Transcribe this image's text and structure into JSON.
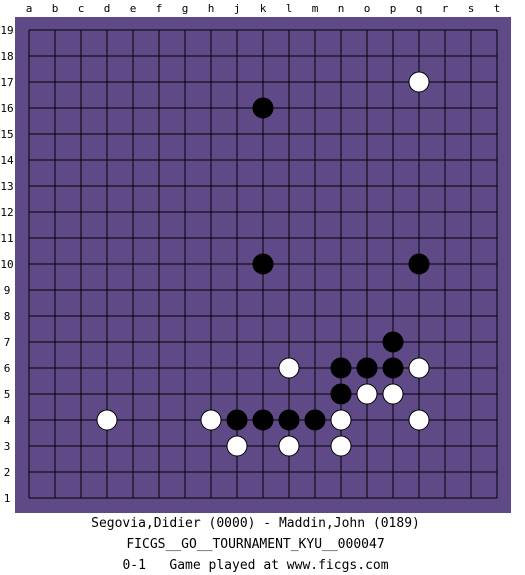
{
  "board": {
    "size": 19,
    "columns": [
      "a",
      "b",
      "c",
      "d",
      "e",
      "f",
      "g",
      "h",
      "j",
      "k",
      "l",
      "m",
      "n",
      "o",
      "p",
      "q",
      "r",
      "s",
      "t"
    ],
    "rows": [
      "19",
      "18",
      "17",
      "16",
      "15",
      "14",
      "13",
      "12",
      "11",
      "10",
      "9",
      "8",
      "7",
      "6",
      "5",
      "4",
      "3",
      "2",
      "1"
    ],
    "colors": {
      "board": "#5f4a87",
      "margin": "#5f4a87",
      "grid": "#000000",
      "black_stone": "#000000",
      "white_stone": "#ffffff"
    },
    "stones": [
      {
        "coord": "q17",
        "color": "white"
      },
      {
        "coord": "k16",
        "color": "black"
      },
      {
        "coord": "k10",
        "color": "black"
      },
      {
        "coord": "q10",
        "color": "black"
      },
      {
        "coord": "p7",
        "color": "black"
      },
      {
        "coord": "l6",
        "color": "white"
      },
      {
        "coord": "n6",
        "color": "black"
      },
      {
        "coord": "o6",
        "color": "black"
      },
      {
        "coord": "p6",
        "color": "black"
      },
      {
        "coord": "q6",
        "color": "white"
      },
      {
        "coord": "n5",
        "color": "black"
      },
      {
        "coord": "o5",
        "color": "white"
      },
      {
        "coord": "p5",
        "color": "white"
      },
      {
        "coord": "d4",
        "color": "white"
      },
      {
        "coord": "h4",
        "color": "white"
      },
      {
        "coord": "j4",
        "color": "black"
      },
      {
        "coord": "k4",
        "color": "black"
      },
      {
        "coord": "l4",
        "color": "black"
      },
      {
        "coord": "m4",
        "color": "black"
      },
      {
        "coord": "n4",
        "color": "white"
      },
      {
        "coord": "q4",
        "color": "white"
      },
      {
        "coord": "j3",
        "color": "white"
      },
      {
        "coord": "l3",
        "color": "white"
      },
      {
        "coord": "n3",
        "color": "white"
      }
    ]
  },
  "footer": {
    "players": "Segovia,Didier (0000) - Maddin,John (0189)",
    "event": "FICGS__GO__TOURNAMENT_KYU__000047",
    "result_line": "0-1   Game played at www.ficgs.com"
  }
}
